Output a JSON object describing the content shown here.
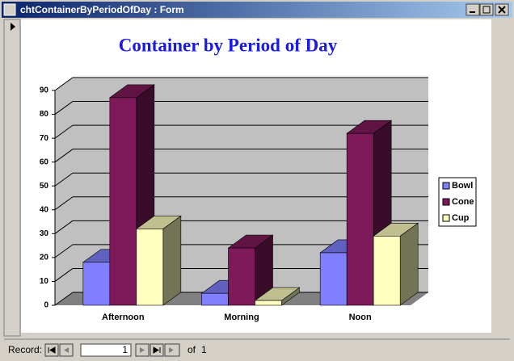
{
  "window": {
    "title": "chtContainerByPeriodOfDay : Form"
  },
  "record_nav": {
    "label": "Record:",
    "current": "1",
    "of": "of",
    "total": "1"
  },
  "chart_data": {
    "type": "bar",
    "title": "Container by Period of Day",
    "categories": [
      "Afternoon",
      "Morning",
      "Noon"
    ],
    "series": [
      {
        "name": "Bowl",
        "color": "#8080ff",
        "values": [
          18,
          5,
          22
        ]
      },
      {
        "name": "Cone",
        "color": "#7f1a5a",
        "values": [
          87,
          24,
          72
        ]
      },
      {
        "name": "Cup",
        "color": "#ffffc0",
        "values": [
          32,
          2,
          29
        ]
      }
    ],
    "ylim": [
      0,
      90
    ],
    "yticks": [
      0,
      10,
      20,
      30,
      40,
      50,
      60,
      70,
      80,
      90
    ],
    "grid": true,
    "legend": "right"
  }
}
